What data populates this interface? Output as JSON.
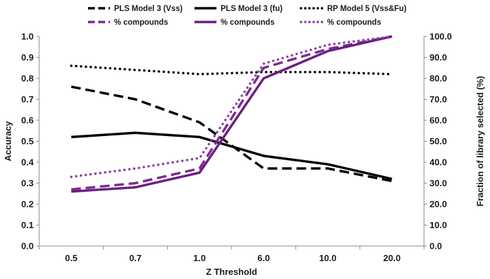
{
  "chart_data": {
    "type": "line",
    "categories": [
      "0.5",
      "0.7",
      "1.0",
      "6.0",
      "10.0",
      "20.0"
    ],
    "xlabel": "Z Threshold",
    "ylabel": "Accuracy",
    "y2label": "Fraction of library selected (%)",
    "ylim": [
      0,
      1.0
    ],
    "yticks": [
      "0.0",
      "0.1",
      "0.2",
      "0.3",
      "0.4",
      "0.5",
      "0.6",
      "0.7",
      "0.8",
      "0.9",
      "1.0"
    ],
    "y2lim": [
      0,
      100
    ],
    "y2ticks": [
      "0.0",
      "10.0",
      "20.0",
      "30.0",
      "40.0",
      "50.0",
      "60.0",
      "70.0",
      "80.0",
      "90.0",
      "100.0"
    ],
    "grid": false,
    "legend_position": "top",
    "series": [
      {
        "name": "PLS Model 3 (Vss)",
        "axis": "left",
        "style": "dash",
        "color": "#000000",
        "values": [
          0.76,
          0.7,
          0.59,
          0.37,
          0.37,
          0.31
        ]
      },
      {
        "name": "PLS Model 3 (fu)",
        "axis": "left",
        "style": "solid",
        "color": "#000000",
        "values": [
          0.52,
          0.54,
          0.52,
          0.43,
          0.39,
          0.32
        ]
      },
      {
        "name": "RP Model 5 (Vss&Fu)",
        "axis": "left",
        "style": "dot",
        "color": "#000000",
        "values": [
          0.86,
          0.84,
          0.82,
          0.83,
          0.83,
          0.82
        ]
      },
      {
        "name": "% compounds",
        "axis": "right",
        "style": "dash",
        "color": "#7b2d8e",
        "values": [
          27,
          30,
          37,
          85,
          94,
          100
        ]
      },
      {
        "name": "% compounds",
        "axis": "right",
        "style": "solid",
        "color": "#6a1f82",
        "values": [
          26,
          28,
          35,
          80,
          93,
          100
        ]
      },
      {
        "name": "% compounds",
        "axis": "right",
        "style": "dot",
        "color": "#8e3fa3",
        "values": [
          33,
          37,
          42,
          87,
          96,
          100
        ]
      }
    ]
  }
}
